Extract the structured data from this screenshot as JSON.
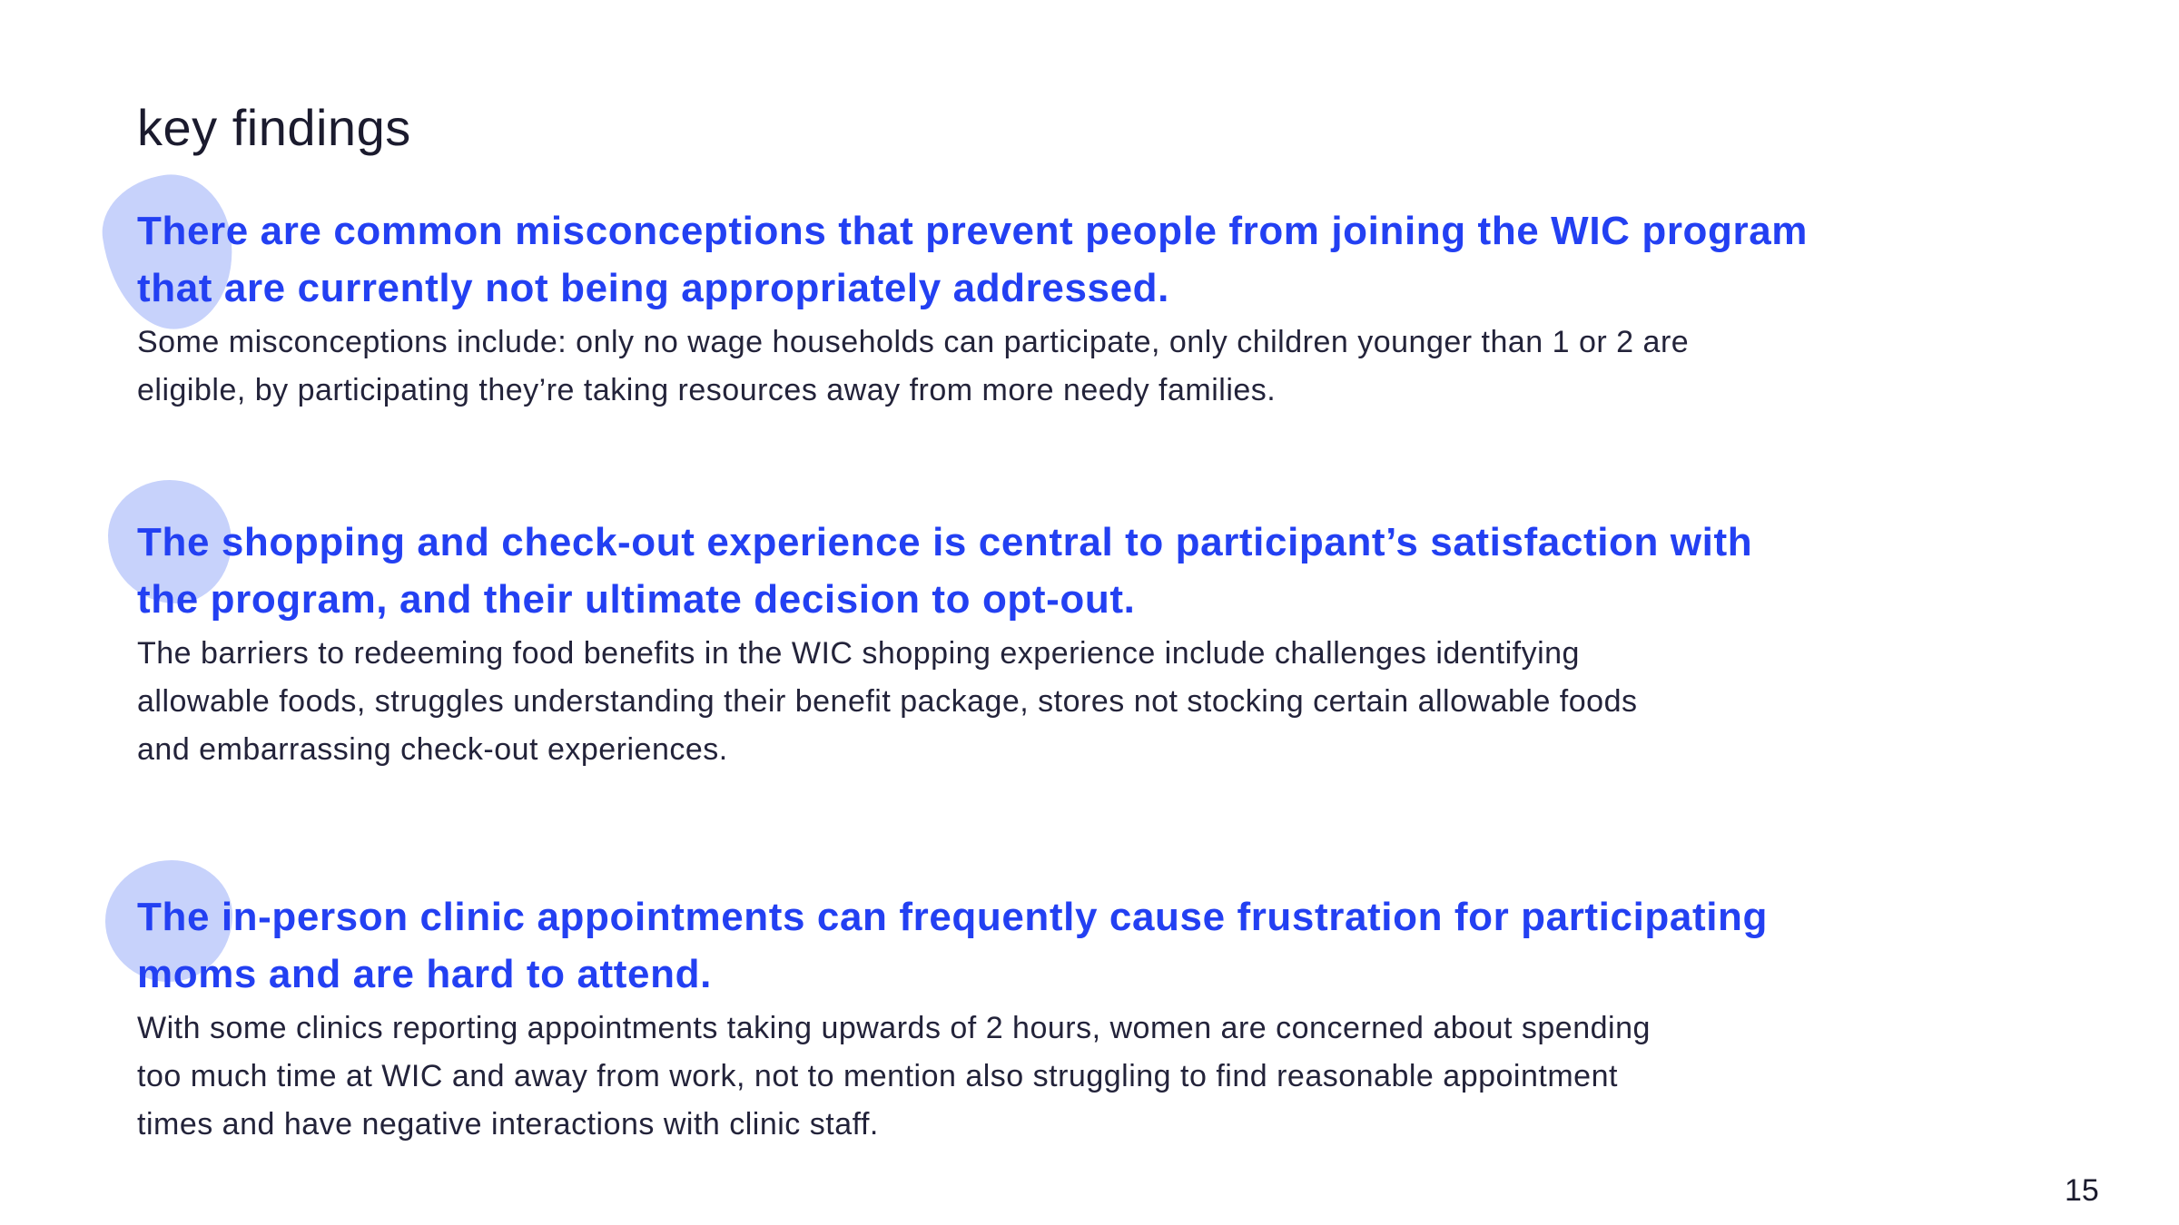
{
  "title": "key findings",
  "findings": [
    {
      "heading": [
        "There are common misconceptions that prevent people from joining the WIC program",
        "that are currently not being appropriately addressed."
      ],
      "body": [
        "Some misconceptions include: only no wage households can participate, only children younger than 1 or 2 are",
        "eligible, by participating they’re taking resources away from more needy families."
      ]
    },
    {
      "heading": [
        "The shopping and check-out experience is central to participant’s satisfaction with",
        "the program, and their ultimate decision to opt-out."
      ],
      "body": [
        "The barriers to redeeming food benefits in the WIC shopping experience include challenges identifying",
        "allowable foods, struggles understanding their benefit package, stores not stocking certain allowable foods",
        "and embarrassing check-out experiences."
      ]
    },
    {
      "heading": [
        "The in-person clinic appointments can frequently cause frustration for participating",
        "moms and are hard to attend."
      ],
      "body": [
        "With some clinics reporting appointments taking upwards of 2 hours, women are concerned about spending",
        "too much time at WIC and away from work, not to mention also struggling to find reasonable appointment",
        "times and have negative interactions with clinic staff."
      ]
    }
  ],
  "page_number": "15",
  "colors": {
    "heading": "#2340f2",
    "blob": "#c7d2fb",
    "text": "#23233a"
  }
}
